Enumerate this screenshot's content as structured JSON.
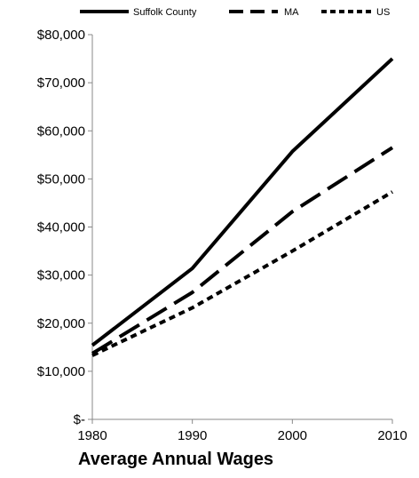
{
  "caption": "Average Annual Wages",
  "chart_data": {
    "type": "line",
    "title": "",
    "xlabel": "",
    "ylabel": "",
    "x": [
      1980,
      1990,
      2000,
      2010
    ],
    "x_tick_labels": [
      "1980",
      "1990",
      "2000",
      "2010"
    ],
    "ylim": [
      0,
      80000
    ],
    "y_ticks": [
      0,
      10000,
      20000,
      30000,
      40000,
      50000,
      60000,
      70000,
      80000
    ],
    "y_tick_labels": [
      "$-",
      "$10,000",
      "$20,000",
      "$30,000",
      "$40,000",
      "$50,000",
      "$60,000",
      "$70,000",
      "$80,000"
    ],
    "grid": false,
    "legend_position": "top",
    "series": [
      {
        "name": "Suffolk County",
        "style": "solid",
        "color": "#000000",
        "values": [
          15400,
          31400,
          55700,
          75000
        ]
      },
      {
        "name": "MA",
        "style": "long-dash",
        "color": "#000000",
        "values": [
          13700,
          26400,
          43200,
          56500
        ]
      },
      {
        "name": "US",
        "style": "short-dash",
        "color": "#000000",
        "values": [
          13300,
          23200,
          35000,
          47300
        ]
      }
    ]
  }
}
